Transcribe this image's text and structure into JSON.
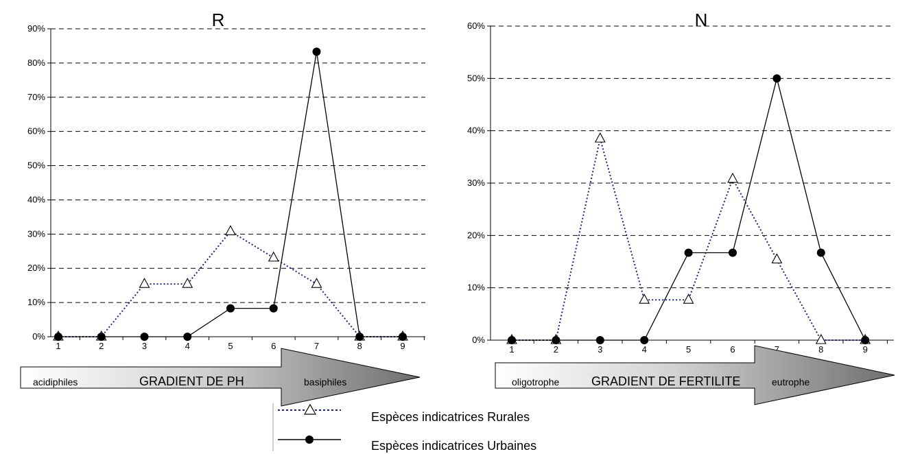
{
  "chart_data": [
    {
      "type": "line",
      "title": "R",
      "x": [
        1,
        2,
        3,
        4,
        5,
        6,
        7,
        8,
        9
      ],
      "ylim": [
        0,
        90
      ],
      "y_ticks": [
        "0%",
        "10%",
        "20%",
        "30%",
        "40%",
        "50%",
        "60%",
        "70%",
        "80%",
        "90%"
      ],
      "grid": true,
      "series": [
        {
          "name": "Espèces indicatrices Rurales",
          "color": "#1a237e",
          "style": "dotted",
          "marker": "triangle-open",
          "values": [
            0,
            0,
            15.4,
            15.4,
            30.8,
            23.1,
            15.4,
            0,
            0
          ]
        },
        {
          "name": "Espèces indicatrices Urbaines",
          "color": "#000000",
          "style": "solid",
          "marker": "circle-filled",
          "values": [
            0,
            0,
            0,
            0,
            8.3,
            8.3,
            83.3,
            0,
            0
          ]
        }
      ],
      "gradient_arrow": {
        "left": "acidiphiles",
        "center": "GRADIENT DE PH",
        "right": "basiphiles"
      }
    },
    {
      "type": "line",
      "title": "N",
      "x": [
        1,
        2,
        3,
        4,
        5,
        6,
        7,
        8,
        9
      ],
      "ylim": [
        0,
        60
      ],
      "y_ticks": [
        "0%",
        "10%",
        "20%",
        "30%",
        "40%",
        "50%",
        "60%"
      ],
      "grid": true,
      "series": [
        {
          "name": "Espèces indicatrices Rurales",
          "color": "#1a237e",
          "style": "dotted",
          "marker": "triangle-open",
          "values": [
            0,
            0,
            38.5,
            7.7,
            7.7,
            30.8,
            15.4,
            0,
            0
          ]
        },
        {
          "name": "Espèces indicatrices Urbaines",
          "color": "#000000",
          "style": "solid",
          "marker": "circle-filled",
          "values": [
            0,
            0,
            0,
            0,
            16.7,
            16.7,
            50,
            16.7,
            0
          ]
        }
      ],
      "gradient_arrow": {
        "left": "oligotrophe",
        "center": "GRADIENT DE FERTILITE",
        "right": "eutrophe"
      }
    }
  ],
  "legend": [
    {
      "label": "Espèces indicatrices Rurales",
      "color": "#1a237e",
      "style": "dotted",
      "marker": "triangle-open"
    },
    {
      "label": "Espèces indicatrices Urbaines",
      "color": "#000000",
      "style": "solid",
      "marker": "circle-filled"
    }
  ]
}
